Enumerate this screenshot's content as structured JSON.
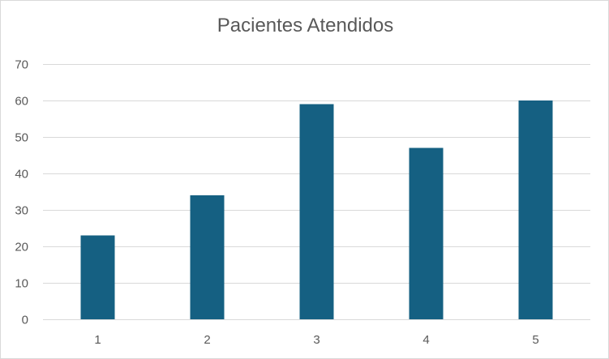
{
  "chart_data": {
    "type": "bar",
    "title": "Pacientes Atendidos",
    "categories": [
      "1",
      "2",
      "3",
      "4",
      "5"
    ],
    "values": [
      23,
      34,
      59,
      47,
      60
    ],
    "ylim": [
      0,
      70
    ],
    "yticks": [
      0,
      10,
      20,
      30,
      40,
      50,
      60,
      70
    ],
    "xlabel": "",
    "ylabel": "",
    "grid": true,
    "legend": "none",
    "colors": {
      "bar": "#156082",
      "grid": "#d9d9d9",
      "text": "#595959"
    }
  }
}
